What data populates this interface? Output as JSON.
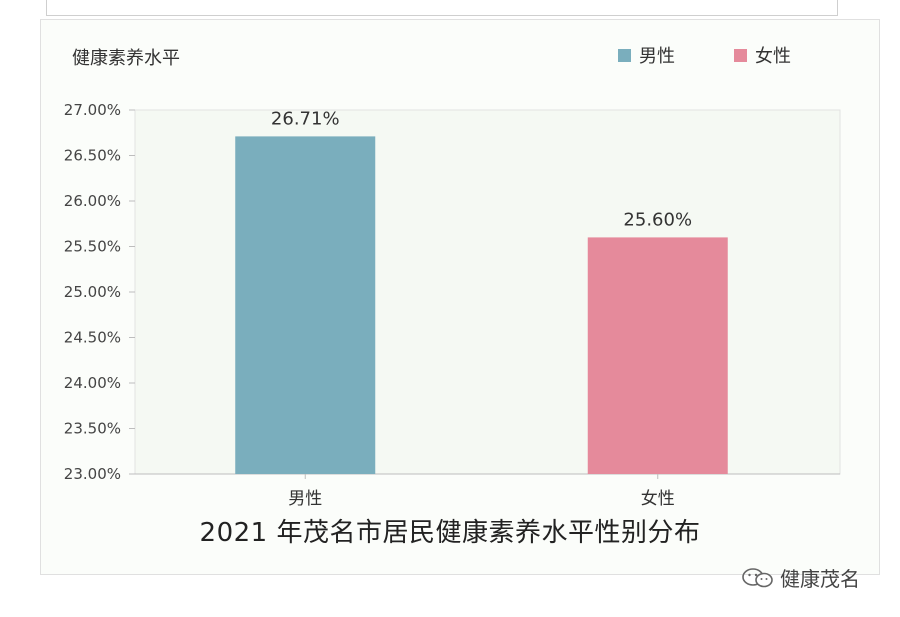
{
  "chart_data": {
    "type": "bar",
    "title": "2021 年茂名市居民健康素养水平性别分布",
    "ylabel": "健康素养水平",
    "xlabel": "",
    "categories": [
      "男性",
      "女性"
    ],
    "values": [
      26.71,
      25.6
    ],
    "data_labels": [
      "26.71%",
      "25.60%"
    ],
    "bar_colors": [
      "#7aaebd",
      "#e58a9b"
    ],
    "ylim": [
      23.0,
      27.0
    ],
    "yticks": [
      23.0,
      23.5,
      24.0,
      24.5,
      25.0,
      25.5,
      26.0,
      26.5,
      27.0
    ],
    "ytick_labels": [
      "23.00%",
      "23.50%",
      "24.00%",
      "24.50%",
      "25.00%",
      "25.50%",
      "26.00%",
      "26.50%",
      "27.00%"
    ],
    "legend": [
      {
        "label": "男性",
        "color": "#7aaebd"
      },
      {
        "label": "女性",
        "color": "#e58a9b"
      }
    ],
    "legend_position": "top-right",
    "grid": false
  },
  "watermark": {
    "text": "健康茂名",
    "icon": "wechat-icon"
  }
}
